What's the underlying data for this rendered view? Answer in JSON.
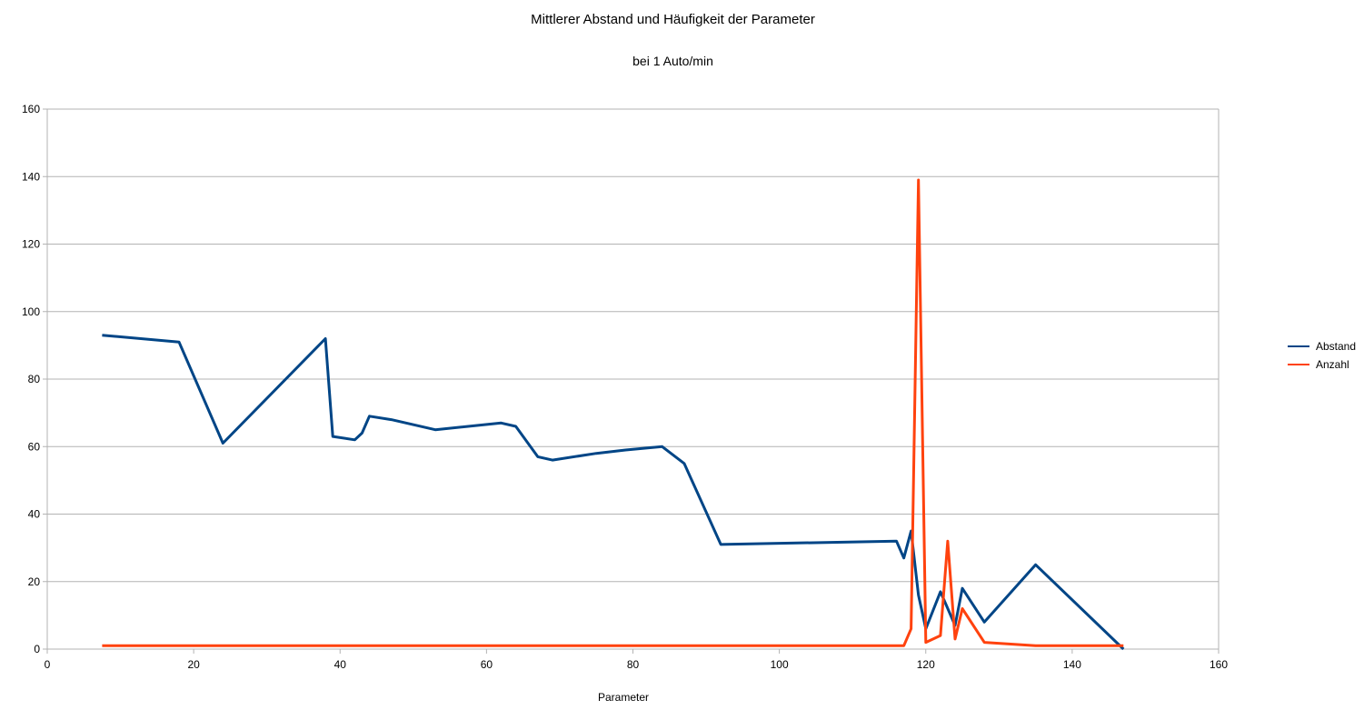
{
  "chart_data": {
    "type": "line",
    "title": "Mittlerer Abstand und Häufigkeit der Parameter",
    "subtitle": "bei 1 Auto/min",
    "xlabel": "Parameter",
    "ylabel": "",
    "xlim": [
      0,
      160
    ],
    "ylim": [
      0,
      160
    ],
    "xticks": [
      0,
      20,
      40,
      60,
      80,
      100,
      120,
      140,
      160
    ],
    "yticks": [
      0,
      20,
      40,
      60,
      80,
      100,
      120,
      140,
      160
    ],
    "grid": "horizontal",
    "legend_position": "right",
    "series": [
      {
        "name": "Abstand",
        "color": "#004586",
        "points": [
          [
            7.5,
            93
          ],
          [
            18,
            91
          ],
          [
            24,
            61
          ],
          [
            38,
            92
          ],
          [
            39,
            63
          ],
          [
            42,
            62
          ],
          [
            43,
            64
          ],
          [
            44,
            69
          ],
          [
            47,
            68
          ],
          [
            53,
            65
          ],
          [
            62,
            67
          ],
          [
            64,
            66
          ],
          [
            67,
            57
          ],
          [
            69,
            56
          ],
          [
            75,
            58
          ],
          [
            79,
            59
          ],
          [
            84,
            60
          ],
          [
            87,
            55
          ],
          [
            92,
            31
          ],
          [
            116,
            32
          ],
          [
            117,
            27
          ],
          [
            118,
            35
          ],
          [
            119,
            16
          ],
          [
            120,
            6
          ],
          [
            122,
            17
          ],
          [
            124,
            7
          ],
          [
            125,
            18
          ],
          [
            128,
            8
          ],
          [
            135,
            25
          ],
          [
            147,
            0
          ]
        ]
      },
      {
        "name": "Anzahl",
        "color": "#ff420e",
        "points": [
          [
            7.5,
            1
          ],
          [
            18,
            1
          ],
          [
            24,
            1
          ],
          [
            38,
            1
          ],
          [
            39,
            1
          ],
          [
            42,
            1
          ],
          [
            43,
            1
          ],
          [
            44,
            1
          ],
          [
            47,
            1
          ],
          [
            53,
            1
          ],
          [
            62,
            1
          ],
          [
            64,
            1
          ],
          [
            67,
            1
          ],
          [
            69,
            1
          ],
          [
            75,
            1
          ],
          [
            79,
            1
          ],
          [
            84,
            1
          ],
          [
            87,
            1
          ],
          [
            92,
            1
          ],
          [
            116,
            1
          ],
          [
            117,
            1
          ],
          [
            118,
            6
          ],
          [
            119,
            139
          ],
          [
            120,
            2
          ],
          [
            122,
            4
          ],
          [
            123,
            32
          ],
          [
            124,
            3
          ],
          [
            125,
            12
          ],
          [
            128,
            2
          ],
          [
            135,
            1
          ],
          [
            147,
            1
          ]
        ]
      }
    ]
  }
}
